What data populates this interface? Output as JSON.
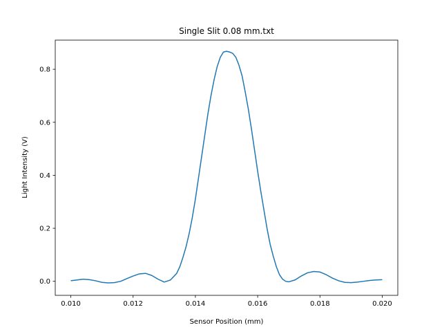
{
  "chart_data": {
    "type": "line",
    "title": "Single Slit 0.08 mm.txt",
    "xlabel": "Sensor Position (mm)",
    "ylabel": "Light Intensity (V)",
    "xlim": [
      0.0095,
      0.0205
    ],
    "ylim": [
      -0.053,
      0.91
    ],
    "xticks": [
      0.01,
      0.012,
      0.014,
      0.016,
      0.018,
      0.02
    ],
    "xtick_labels": [
      "0.010",
      "0.012",
      "0.014",
      "0.016",
      "0.018",
      "0.020"
    ],
    "yticks": [
      0.0,
      0.2,
      0.4,
      0.6,
      0.8
    ],
    "ytick_labels": [
      "0.0",
      "0.2",
      "0.4",
      "0.6",
      "0.8"
    ],
    "grid": false,
    "legend": "none",
    "series": [
      {
        "color": "#1f77b4",
        "x": [
          0.01,
          0.0102,
          0.0104,
          0.0106,
          0.0108,
          0.011,
          0.0112,
          0.0114,
          0.0116,
          0.0118,
          0.012,
          0.0122,
          0.0124,
          0.0126,
          0.0128,
          0.013,
          0.0132,
          0.0134,
          0.0135,
          0.0136,
          0.0137,
          0.0138,
          0.0139,
          0.014,
          0.0141,
          0.0142,
          0.0143,
          0.0144,
          0.0145,
          0.0146,
          0.0147,
          0.0148,
          0.0149,
          0.015,
          0.0151,
          0.0152,
          0.0153,
          0.0154,
          0.0155,
          0.0156,
          0.0157,
          0.0158,
          0.0159,
          0.016,
          0.0161,
          0.0162,
          0.0163,
          0.0164,
          0.0165,
          0.0166,
          0.0167,
          0.0168,
          0.0169,
          0.017,
          0.0172,
          0.0174,
          0.0176,
          0.0178,
          0.018,
          0.0182,
          0.0184,
          0.0186,
          0.0188,
          0.019,
          0.0192,
          0.0194,
          0.0196,
          0.0198,
          0.02
        ],
        "y": [
          0.002,
          0.005,
          0.008,
          0.006,
          0.002,
          -0.004,
          -0.006,
          -0.005,
          0.0,
          0.01,
          0.02,
          0.028,
          0.03,
          0.022,
          0.008,
          -0.003,
          0.005,
          0.03,
          0.055,
          0.09,
          0.13,
          0.18,
          0.24,
          0.31,
          0.39,
          0.47,
          0.55,
          0.63,
          0.7,
          0.76,
          0.81,
          0.845,
          0.865,
          0.868,
          0.865,
          0.86,
          0.845,
          0.815,
          0.775,
          0.715,
          0.65,
          0.575,
          0.495,
          0.415,
          0.34,
          0.27,
          0.2,
          0.14,
          0.095,
          0.055,
          0.025,
          0.008,
          0.0,
          -0.002,
          0.005,
          0.02,
          0.032,
          0.037,
          0.035,
          0.025,
          0.012,
          0.002,
          -0.004,
          -0.005,
          -0.003,
          0.0,
          0.003,
          0.005,
          0.006
        ]
      }
    ]
  }
}
